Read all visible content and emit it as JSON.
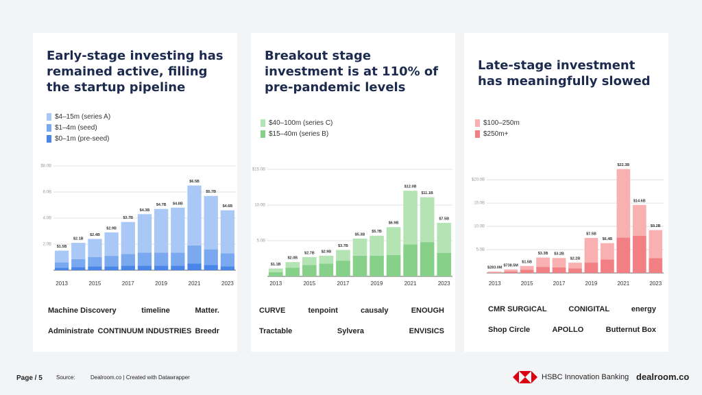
{
  "chart_data": [
    {
      "type": "bar",
      "title": "Early-stage investing has remained active, filling the startup pipeline",
      "categories": [
        "2013",
        null,
        "2015",
        null,
        "2017",
        null,
        "2019",
        null,
        "2021",
        null,
        "2023"
      ],
      "series": [
        {
          "name": "$4–15m (series A)",
          "color": "#a9c8f5",
          "values": [
            0.9,
            1.25,
            1.4,
            1.8,
            2.45,
            2.95,
            3.35,
            3.45,
            4.6,
            4.1,
            3.3
          ]
        },
        {
          "name": "$1–4m (seed)",
          "color": "#7ba9ef",
          "values": [
            0.4,
            0.6,
            0.7,
            0.8,
            0.9,
            1.0,
            1.0,
            1.0,
            1.4,
            1.2,
            1.0
          ]
        },
        {
          "name": "$0–1m (pre-seed)",
          "color": "#4a86e8",
          "values": [
            0.2,
            0.25,
            0.3,
            0.3,
            0.35,
            0.35,
            0.35,
            0.35,
            0.5,
            0.4,
            0.3
          ]
        }
      ],
      "totals": {
        "values": [
          1.5,
          2.1,
          2.4,
          2.9,
          3.7,
          4.3,
          4.7,
          4.8,
          6.5,
          5.7,
          4.6
        ],
        "value_labels": [
          "$1.5B",
          "$2.1B",
          "$2.4B",
          "$2.9B",
          "$3.7B",
          "$4.3B",
          "$4.7B",
          "$4.8B",
          "$6.5B",
          "$5.7B",
          "$4.6B"
        ]
      },
      "ylim": [
        0,
        8
      ],
      "yticks": [
        {
          "value": 2,
          "label": "2.0B"
        },
        {
          "value": 4,
          "label": "4.0B"
        },
        {
          "value": 6,
          "label": "6.0B"
        },
        {
          "value": 8,
          "label": "$8.0B"
        }
      ],
      "grid": true,
      "logos": [
        [
          "Machine Discovery",
          "timeline",
          "Matter."
        ],
        [
          "Administrate",
          "CONTINUUM INDUSTRIES",
          "Breedr"
        ]
      ]
    },
    {
      "type": "bar",
      "title": "Breakout stage investment is at 110% of pre-pandemic levels",
      "categories": [
        "2013",
        null,
        "2015",
        null,
        "2017",
        null,
        "2019",
        null,
        "2021",
        null,
        "2023"
      ],
      "series": [
        {
          "name": "$40–100m (series C)",
          "color": "#b4e3b4",
          "values": [
            0.5,
            0.8,
            1.1,
            1.1,
            1.5,
            2.4,
            2.8,
            3.9,
            7.5,
            6.3,
            4.2
          ]
        },
        {
          "name": "$15–40m (series B)",
          "color": "#86d08a",
          "values": [
            0.6,
            1.2,
            1.6,
            1.8,
            2.2,
            2.9,
            2.9,
            3.0,
            4.5,
            4.8,
            3.3
          ]
        }
      ],
      "totals": {
        "values": [
          1.1,
          2.0,
          2.7,
          2.9,
          3.7,
          5.3,
          5.7,
          6.9,
          12.0,
          11.1,
          7.5
        ],
        "value_labels": [
          "$1.1B",
          "$2.0B",
          "$2.7B",
          "$2.9B",
          "$3.7B",
          "$5.3B",
          "$5.7B",
          "$6.9B",
          "$12.0B",
          "$11.1B",
          "$7.5B"
        ]
      },
      "ylim": [
        0,
        15
      ],
      "yticks": [
        {
          "value": 5,
          "label": "5.0B"
        },
        {
          "value": 10,
          "label": "10.0B"
        },
        {
          "value": 15,
          "label": "$15.0B"
        }
      ],
      "grid": true,
      "logos": [
        [
          "CURVE",
          "tenpoint",
          "causaly",
          "ENOUGH"
        ],
        [
          "Tractable",
          "Sylvera",
          "ENVISICS"
        ]
      ]
    },
    {
      "type": "bar",
      "title": "Late-stage investment has meaningfully slowed",
      "categories": [
        "2013",
        null,
        "2015",
        null,
        "2017",
        null,
        "2019",
        null,
        "2021",
        null,
        "2023"
      ],
      "series": [
        {
          "name": "$100–250m",
          "color": "#f9b0b0",
          "values": [
            0.183,
            0.4385,
            0.8,
            2.0,
            2.0,
            1.2,
            5.3,
            3.5,
            14.7,
            6.6,
            6.0
          ]
        },
        {
          "name": "$250m+",
          "color": "#f17f84",
          "values": [
            0.1,
            0.3,
            0.7,
            1.3,
            1.2,
            1.0,
            2.2,
            2.9,
            7.6,
            8.0,
            3.2
          ]
        }
      ],
      "totals": {
        "values": [
          0.283,
          0.7385,
          1.5,
          3.3,
          3.2,
          2.2,
          7.5,
          6.4,
          22.3,
          14.6,
          9.2
        ],
        "value_labels": [
          "$283.0M",
          "$738.5M",
          "$1.5B",
          "$3.3B",
          "$3.2B",
          "$2.2B",
          "$7.5B",
          "$6.4B",
          "$22.3B",
          "$14.6B",
          "$9.2B"
        ]
      },
      "ylim": [
        0,
        24
      ],
      "yticks": [
        {
          "value": 5,
          "label": "5.0B"
        },
        {
          "value": 10,
          "label": "10.0B"
        },
        {
          "value": 15,
          "label": "15.0B"
        },
        {
          "value": 20,
          "label": "$20.0B"
        }
      ],
      "grid": true,
      "logos": [
        [
          "CMR SURGICAL",
          "CONIGITAL",
          "energy"
        ],
        [
          "Shop Circle",
          "APOLLO",
          "Butternut Box"
        ]
      ]
    }
  ],
  "footer": {
    "page": "Page / 5",
    "source_label": "Source:",
    "source": "Dealroom.co | Created with Datawrapper",
    "partner": "HSBC Innovation Banking",
    "brand": "dealroom.co"
  }
}
